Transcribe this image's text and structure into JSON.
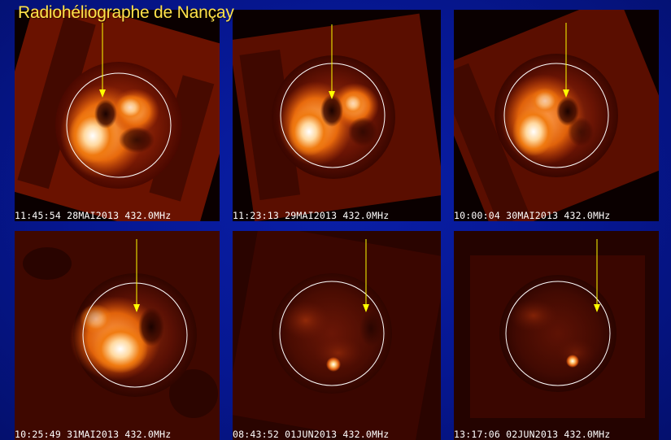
{
  "title": "Radiohéliographe de Nançay",
  "colors": {
    "background": "#061791",
    "title": "#ffe24a",
    "arrow": "#ffff00",
    "limb_circle": "#ffffff",
    "caption": "#ffffff"
  },
  "panels": [
    {
      "caption": "11:45:54 28MAI2013 432.0MHz"
    },
    {
      "caption": "11:23:13 29MAI2013 432.0MHz"
    },
    {
      "caption": "10:00:04 30MAI2013 432.0MHz"
    },
    {
      "caption": "10:25:49 31MAI2013 432.0MHz"
    },
    {
      "caption": "08:43:52 01JUN2013 432.0MHz"
    },
    {
      "caption": "13:17:06 02JUN2013 432.0MHz"
    }
  ]
}
